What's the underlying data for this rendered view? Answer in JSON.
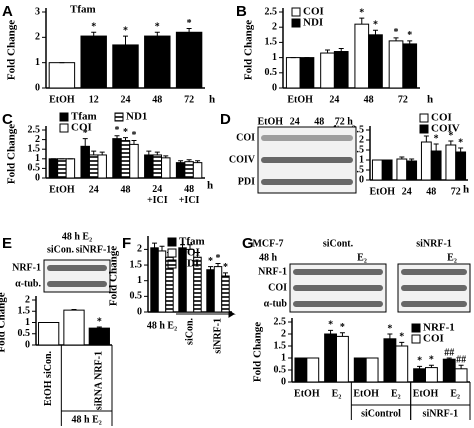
{
  "chart_data": [
    {
      "type": "bar",
      "panel": "A",
      "title": "Tfam",
      "ylabel": "Fold Change",
      "ylim": [
        0,
        3
      ],
      "yticks": [
        0,
        1,
        2,
        3
      ],
      "categories": [
        "EtOH",
        "12",
        "24",
        "48",
        "72"
      ],
      "xunit": "h",
      "series": [
        {
          "colors": [
            "#ffffff",
            "#000000",
            "#000000",
            "#000000",
            "#000000"
          ],
          "values": [
            1,
            2.05,
            1.7,
            2.05,
            2.2
          ],
          "errors": [
            0,
            0.15,
            0.35,
            0.15,
            0.15
          ],
          "annotations": [
            null,
            "*",
            "*",
            "*",
            "*"
          ]
        }
      ]
    },
    {
      "type": "bar",
      "panel": "B",
      "ylabel": "Fold Change",
      "ylim": [
        0,
        2.5
      ],
      "yticks": [
        0,
        0.5,
        1,
        1.5,
        2,
        2.5
      ],
      "categories": [
        "EtOH",
        "24",
        "48",
        "72"
      ],
      "xunit": "h",
      "series": [
        {
          "name": "COI",
          "color": "#ffffff",
          "values": [
            1,
            1.15,
            2.1,
            1.55
          ],
          "errors": [
            0,
            0.1,
            0.2,
            0.1
          ],
          "annotations": [
            null,
            null,
            "*",
            "*"
          ]
        },
        {
          "name": "NDI",
          "color": "#000000",
          "values": [
            1,
            1.2,
            1.75,
            1.45
          ],
          "errors": [
            0,
            0.1,
            0.15,
            0.1
          ],
          "annotations": [
            null,
            null,
            "*",
            "*"
          ]
        }
      ]
    },
    {
      "type": "bar",
      "panel": "C",
      "ylabel": "Fold Change",
      "ylim": [
        0,
        2.5
      ],
      "yticks": [
        0,
        0.5,
        1,
        1.5,
        2,
        2.5
      ],
      "categories": [
        "EtOH",
        "24",
        "48",
        "24 +ICI",
        "48 +ICI"
      ],
      "xunit": "h",
      "series": [
        {
          "name": "Tfam",
          "color": "#000000",
          "values": [
            1,
            1.65,
            2.05,
            1.2,
            0.8
          ],
          "errors": [
            0,
            0.4,
            0.15,
            0.2,
            0.1
          ],
          "annotations": [
            null,
            "*",
            "*",
            null,
            null
          ]
        },
        {
          "name": "ND1",
          "color": "#000000",
          "pattern": "horizontal-stripes",
          "values": [
            1,
            1.2,
            1.95,
            1.2,
            0.85
          ],
          "errors": [
            0,
            0.2,
            0.15,
            0.15,
            0.1
          ],
          "annotations": [
            null,
            null,
            "*",
            null,
            null
          ]
        },
        {
          "name": "COI",
          "color": "#ffffff",
          "values": [
            1,
            1.2,
            1.75,
            1.05,
            0.8
          ],
          "errors": [
            0,
            0.15,
            0.2,
            0.1,
            0.1
          ],
          "annotations": [
            null,
            null,
            "*",
            null,
            null
          ]
        }
      ]
    },
    {
      "type": "bar",
      "panel": "D",
      "ylabel": "Fold Change",
      "ylim": [
        0,
        2.5
      ],
      "yticks": [
        0,
        0.5,
        1,
        1.5,
        2,
        2.5
      ],
      "categories": [
        "EtOH",
        "24",
        "48",
        "72"
      ],
      "xunit": "h",
      "blot": {
        "lanes": [
          "EtOH",
          "24",
          "48",
          "72 h"
        ],
        "rows": [
          "COI",
          "COIV",
          "PDI"
        ]
      },
      "series": [
        {
          "name": "COI",
          "color": "#ffffff",
          "values": [
            1,
            1.05,
            1.9,
            1.75
          ],
          "errors": [
            0,
            0.1,
            0.3,
            0.2
          ],
          "annotations": [
            null,
            null,
            "*",
            "*"
          ]
        },
        {
          "name": "COIV",
          "color": "#000000",
          "values": [
            1,
            0.95,
            1.45,
            1.4
          ],
          "errors": [
            0,
            0.1,
            0.35,
            0.2
          ],
          "annotations": [
            null,
            null,
            "*",
            "*"
          ]
        }
      ]
    },
    {
      "type": "bar",
      "panel": "E",
      "ylabel": "Fold Change",
      "ylim": [
        0,
        2
      ],
      "yticks": [
        0,
        0.5,
        1,
        1.5,
        2
      ],
      "categories": [
        "EtOH siCon.",
        null,
        "siRNA NRF-1"
      ],
      "groups": [
        {
          "label": "48 h E₂",
          "from": 1,
          "to": 2
        }
      ],
      "blot": {
        "header": [
          "48 h E₂"
        ],
        "lanes": [
          "siCon.",
          "siNRF-1"
        ],
        "rows": [
          "NRF-1",
          "α-tub."
        ]
      },
      "series": [
        {
          "colors": [
            "#ffffff",
            "#ffffff",
            "#000000"
          ],
          "values": [
            1,
            1.55,
            0.75
          ],
          "errors": [
            0,
            0.03,
            0.05
          ],
          "annotations": [
            null,
            null,
            "*"
          ]
        }
      ]
    },
    {
      "type": "bar",
      "panel": "F",
      "ylabel": "Fold Change",
      "ylim": [
        0,
        2.3
      ],
      "yticks": [
        0,
        0.5,
        1,
        1.5,
        2
      ],
      "categories": [
        null,
        "siCon.",
        "siNRF-1"
      ],
      "xlabel": "48 h E₂",
      "series": [
        {
          "name": "Tfam",
          "color": "#000000",
          "values": [
            2.05,
            2.05,
            1.35
          ],
          "errors": [
            0.15,
            0.1,
            0.1
          ],
          "annotations": [
            null,
            null,
            "*"
          ]
        },
        {
          "name": "COI",
          "color": "#ffffff",
          "values": [
            1.95,
            2.0,
            1.45
          ],
          "errors": [
            0.15,
            0.15,
            0.1
          ],
          "annotations": [
            null,
            null,
            "*"
          ]
        },
        {
          "name": "NDI",
          "color": "#000000",
          "pattern": "horizontal-stripes",
          "values": [
            1.75,
            1.75,
            1.15
          ],
          "errors": [
            0.15,
            0.15,
            0.1
          ],
          "annotations": [
            null,
            null,
            "*"
          ]
        }
      ]
    },
    {
      "type": "bar",
      "panel": "G",
      "ylabel": "Fold Change",
      "ylim": [
        0,
        2.5
      ],
      "yticks": [
        0,
        0.5,
        1,
        1.5,
        2,
        2.5
      ],
      "categories": [
        "EtOH",
        "E₂",
        "EtOH",
        "E₂",
        "EtOH",
        "E₂"
      ],
      "groups": [
        {
          "label": "siControl",
          "from": 2,
          "to": 3
        },
        {
          "label": "siNRF-1",
          "from": 4,
          "to": 5
        }
      ],
      "blot": {
        "header": [
          "MCF-7",
          "48 h"
        ],
        "lanes": [
          "siCont.",
          "siNRF-1"
        ],
        "sublanes": [
          "E₂",
          "E₂"
        ],
        "rows": [
          "NRF-1",
          "COI",
          "α-tub"
        ]
      },
      "series": [
        {
          "name": "NRF-1",
          "color": "#000000",
          "values": [
            1,
            2.0,
            1.0,
            1.8,
            0.55,
            0.95
          ],
          "errors": [
            0,
            0.15,
            0,
            0.2,
            0.1,
            0.05
          ],
          "annotations": [
            null,
            "*",
            null,
            "*",
            "*",
            "##"
          ]
        },
        {
          "name": "COI",
          "color": "#ffffff",
          "values": [
            1,
            1.9,
            1.0,
            1.5,
            0.6,
            0.55
          ],
          "errors": [
            0,
            0.15,
            0,
            0.15,
            0.1,
            0.15
          ],
          "annotations": [
            null,
            "*",
            null,
            "*",
            "*",
            "##"
          ]
        }
      ]
    }
  ]
}
